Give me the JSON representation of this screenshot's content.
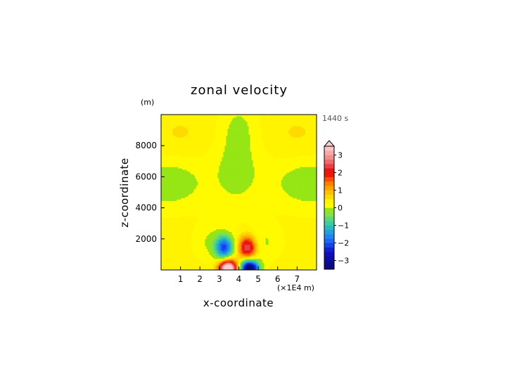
{
  "chart_data": {
    "type": "heatmap",
    "title": "zonal velocity",
    "xlabel": "x-coordinate",
    "ylabel": "z-coordinate",
    "x_unit_label": "(×1E4 m)",
    "y_unit_label": "(m)",
    "time_label": "1440 s",
    "x_ticks": [
      "1",
      "2",
      "3",
      "4",
      "5",
      "6",
      "7"
    ],
    "y_ticks": [
      "2000",
      "4000",
      "6000",
      "8000"
    ],
    "xlim": [
      0,
      8
    ],
    "ylim": [
      0,
      10000
    ],
    "colorbar": {
      "ticks": [
        "3",
        "2",
        "1",
        "0",
        "−1",
        "−2",
        "−3"
      ],
      "tick_values": [
        3,
        2,
        1,
        0,
        -1,
        -2,
        -3
      ],
      "range": [
        -3.5,
        3.5
      ],
      "step": 0.25,
      "colors": {
        "neg_3": "#0a0a6e",
        "neg_2": "#1010c8",
        "neg_1_5": "#1e78ff",
        "neg_1": "#28c8b4",
        "neg_0_5": "#7fe050",
        "zero": "#9ee600",
        "pos_0_25": "#ffff00",
        "pos_1": "#ffb400",
        "pos_1_5": "#ff6a00",
        "pos_2": "#e60000",
        "pos_2_75": "#f08080",
        "pos_3_5": "#ffd0d0"
      }
    }
  }
}
